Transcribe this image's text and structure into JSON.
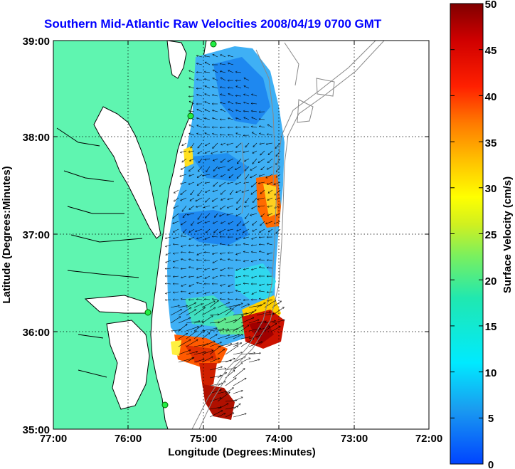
{
  "title": "Southern Mid-Atlantic Raw Velocities 2008/04/19 0700 GMT",
  "x_axis": {
    "label": "Longitude (Degrees:Minutes)",
    "ticks": [
      "77:00",
      "76:00",
      "75:00",
      "74:00",
      "73:00",
      "72:00"
    ]
  },
  "y_axis": {
    "label": "Latitude (Degrees:Minutes)",
    "ticks": [
      "39:00",
      "38:00",
      "37:00",
      "36:00",
      "35:00"
    ]
  },
  "colorbar": {
    "label": "Surface Velocity (cm/s)",
    "ticks": [
      "50",
      "45",
      "40",
      "35",
      "30",
      "25",
      "20",
      "15",
      "10",
      "5",
      "0"
    ],
    "min": 0,
    "max": 50
  },
  "colors": {
    "title": "#0000ff",
    "land": "#5ff5b0",
    "coast": "#000000",
    "bathymetry": "#888888",
    "station": "#22ee44"
  },
  "map_extent": {
    "lon_range": [
      -77,
      -72
    ],
    "lat_range": [
      35,
      39
    ]
  }
}
